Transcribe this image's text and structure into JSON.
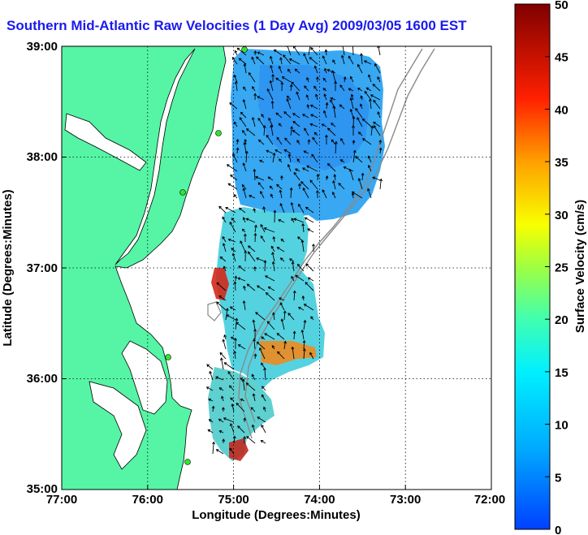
{
  "title": "Southern Mid-Atlantic Raw Velocities (1 Day Avg) 2009/03/05 1600 EST",
  "chart_data": {
    "type": "heatmap",
    "xlabel": "Longitude (Degrees:Minutes)",
    "ylabel": "Latitude (Degrees:Minutes)",
    "x_ticks": [
      "77:00",
      "76:00",
      "75:00",
      "74:00",
      "73:00",
      "72:00"
    ],
    "y_ticks": [
      "39:00",
      "38:00",
      "37:00",
      "36:00",
      "35:00"
    ],
    "xlim": [
      -77,
      -72
    ],
    "ylim": [
      35,
      39
    ],
    "grid": true,
    "colorbar": {
      "label": "Surface Velocity (cm/s)",
      "ticks": [
        "50",
        "45",
        "40",
        "35",
        "30",
        "25",
        "20",
        "15",
        "10",
        "5",
        "0"
      ],
      "range": [
        0,
        50
      ]
    },
    "colors": {
      "land": "#55f5a5",
      "field_low": "#2aa0ff",
      "field_high": "#cc1010",
      "station": "#2ee62e",
      "bathymetry": "#8a8a8a"
    }
  }
}
